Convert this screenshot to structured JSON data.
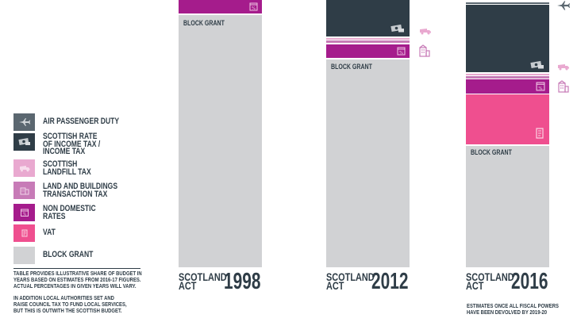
{
  "legend": {
    "items": [
      {
        "lines": [
          "AIR PASSENGER DUTY"
        ],
        "color": "#5b6770",
        "icon": "plane-icon"
      },
      {
        "lines": [
          "SCOTTISH RATE",
          "OF INCOME TAX /",
          "INCOME TAX"
        ],
        "color": "#2f3d47",
        "icon": "money-icon"
      },
      {
        "lines": [
          "SCOTTISH",
          "LANDFILL TAX"
        ],
        "color": "#e9a9d0",
        "icon": "truck-icon"
      },
      {
        "lines": [
          "LAND AND BUILDINGS",
          "TRANSACTION TAX"
        ],
        "color": "#c77bb7",
        "icon": "buildings-icon"
      },
      {
        "lines": [
          "NON DOMESTIC",
          "RATES"
        ],
        "color": "#a51c8c",
        "icon": "percent-shop-icon"
      },
      {
        "lines": [
          "VAT"
        ],
        "color": "#ef4f8f",
        "icon": "receipt-icon"
      },
      {
        "lines": [
          "BLOCK GRANT"
        ],
        "color": "#d1d2d4",
        "icon": ""
      }
    ]
  },
  "notes": {
    "note1": [
      "TABLE PROVIDES ILLUSTRATIVE SHARE OF BUDGET IN",
      "YEARS BASED ON ESTIMATES FROM 2016-17 FIGURES.",
      "ACTUAL PERCENTAGES IN GIVEN YEARS WILL VARY."
    ],
    "note2": [
      "IN ADDITION LOCAL AUTHORITIES SET AND",
      "RAISE COUNCIL TAX TO FUND LOCAL SERVICES,",
      "BUT THIS IS OUTWITH THE SCOTTISH BUDGET."
    ]
  },
  "columns": [
    {
      "title_words": [
        "SCOTLAND",
        "ACT"
      ],
      "year": "1998",
      "block_label": "BLOCK GRANT"
    },
    {
      "title_words": [
        "SCOTLAND",
        "ACT"
      ],
      "year": "2012",
      "block_label": "BLOCK GRANT"
    },
    {
      "title_words": [
        "SCOTLAND",
        "ACT"
      ],
      "year": "2016",
      "block_label": "BLOCK GRANT"
    }
  ],
  "estimate_note": [
    "ESTIMATES ONCE ALL FISCAL POWERS",
    "HAVE BEEN DEVOLVED BY 2019-20"
  ],
  "chart_data": {
    "type": "bar",
    "stacked": true,
    "categories": [
      "1998",
      "2012",
      "2016"
    ],
    "series": [
      {
        "name": "AIR PASSENGER DUTY",
        "values": [
          0,
          0,
          0.5
        ]
      },
      {
        "name": "SCOTTISH RATE OF INCOME TAX / INCOME TAX",
        "values": [
          0,
          14,
          27
        ]
      },
      {
        "name": "SCOTTISH LANDFILL TAX",
        "values": [
          0,
          0.5,
          0.5
        ]
      },
      {
        "name": "LAND AND BUILDINGS TRANSACTION TAX",
        "values": [
          0,
          0.8,
          0.8
        ]
      },
      {
        "name": "NON DOMESTIC RATES",
        "values": [
          5,
          5,
          5
        ]
      },
      {
        "name": "VAT",
        "values": [
          0,
          0,
          19
        ]
      },
      {
        "name": "BLOCK GRANT",
        "values": [
          95,
          79.7,
          47.2
        ]
      }
    ],
    "units": "% of budget (illustrative)"
  }
}
